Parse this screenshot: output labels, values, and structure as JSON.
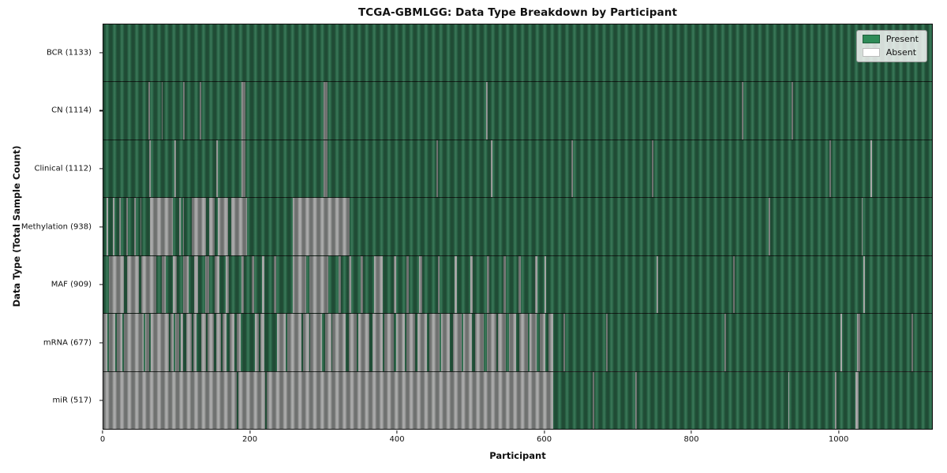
{
  "title": "TCGA-GBMLGG: Data Type Breakdown by Participant",
  "xlabel": "Participant",
  "ylabel": "Data Type (Total Sample Count)",
  "legend": {
    "present_label": "Present",
    "absent_label": "Absent"
  },
  "colors": {
    "present": "#2d6e4d",
    "absent": "#a9a9a9",
    "legend_present": "#2e8b57",
    "legend_absent": "#ffffff",
    "axis": "#111111"
  },
  "chart_data": {
    "type": "heatmap",
    "title": "TCGA-GBMLGG: Data Type Breakdown by Participant",
    "xlabel": "Participant",
    "ylabel": "Data Type (Total Sample Count)",
    "legend_entries": [
      "Present",
      "Absent"
    ],
    "legend_position": "upper right",
    "grid": false,
    "x_range": [
      0,
      1128
    ],
    "x_ticks": [
      0,
      200,
      400,
      600,
      800,
      1000
    ],
    "encoding_note": "Each row is a data type; x is participant index. 'base' is the dominant state; 'runs' are [start,end] participant spans of the opposite state (present<->absent).",
    "rows": [
      {
        "name": "bcr",
        "label": "BCR (1133)",
        "data_type": "BCR",
        "total_samples": 1133,
        "base": "present",
        "runs": []
      },
      {
        "name": "cn",
        "label": "CN (1114)",
        "data_type": "CN",
        "total_samples": 1114,
        "base": "present",
        "runs": [
          [
            61,
            63
          ],
          [
            79,
            81
          ],
          [
            109,
            111
          ],
          [
            131,
            133
          ],
          [
            188,
            193
          ],
          [
            300,
            305
          ],
          [
            521,
            523
          ],
          [
            869,
            871
          ],
          [
            937,
            939
          ]
        ]
      },
      {
        "name": "clinical",
        "label": "Clinical (1112)",
        "data_type": "Clinical",
        "total_samples": 1112,
        "base": "present",
        "runs": [
          [
            62,
            64
          ],
          [
            97,
            99
          ],
          [
            154,
            156
          ],
          [
            188,
            193
          ],
          [
            300,
            305
          ],
          [
            453,
            455
          ],
          [
            528,
            530
          ],
          [
            637,
            639
          ],
          [
            747,
            749
          ],
          [
            988,
            990
          ],
          [
            1044,
            1046
          ]
        ]
      },
      {
        "name": "methylation",
        "label": "Methylation (938)",
        "data_type": "Methylation",
        "total_samples": 938,
        "base": "present",
        "runs": [
          [
            4,
            6
          ],
          [
            13,
            15
          ],
          [
            22,
            24
          ],
          [
            31,
            33
          ],
          [
            42,
            44
          ],
          [
            50,
            52
          ],
          [
            63,
            95
          ],
          [
            103,
            105
          ],
          [
            108,
            110
          ],
          [
            120,
            140
          ],
          [
            144,
            152
          ],
          [
            156,
            170
          ],
          [
            174,
            196
          ],
          [
            258,
            335
          ],
          [
            906,
            908
          ],
          [
            1032,
            1034
          ]
        ]
      },
      {
        "name": "maf",
        "label": "MAF (909)",
        "data_type": "MAF",
        "total_samples": 909,
        "base": "present",
        "runs": [
          [
            8,
            28
          ],
          [
            32,
            48
          ],
          [
            52,
            72
          ],
          [
            80,
            85
          ],
          [
            95,
            100
          ],
          [
            108,
            116
          ],
          [
            124,
            129
          ],
          [
            139,
            144
          ],
          [
            152,
            158
          ],
          [
            166,
            171
          ],
          [
            188,
            191
          ],
          [
            202,
            205
          ],
          [
            216,
            219
          ],
          [
            232,
            235
          ],
          [
            258,
            276
          ],
          [
            280,
            306
          ],
          [
            320,
            323
          ],
          [
            334,
            337
          ],
          [
            350,
            353
          ],
          [
            368,
            380
          ],
          [
            395,
            399
          ],
          [
            412,
            416
          ],
          [
            430,
            434
          ],
          [
            455,
            458
          ],
          [
            478,
            481
          ],
          [
            500,
            503
          ],
          [
            522,
            525
          ],
          [
            545,
            548
          ],
          [
            565,
            568
          ],
          [
            588,
            591
          ],
          [
            600,
            603
          ],
          [
            753,
            755
          ],
          [
            857,
            859
          ],
          [
            1034,
            1037
          ]
        ]
      },
      {
        "name": "mrna",
        "label": "mRNA (677)",
        "data_type": "mRNA",
        "total_samples": 677,
        "base": "absent",
        "runs": [
          [
            5,
            7
          ],
          [
            16,
            18
          ],
          [
            26,
            28
          ],
          [
            55,
            57
          ],
          [
            62,
            64
          ],
          [
            89,
            91
          ],
          [
            96,
            98
          ],
          [
            103,
            105
          ],
          [
            109,
            113
          ],
          [
            120,
            122
          ],
          [
            127,
            133
          ],
          [
            140,
            142
          ],
          [
            150,
            154
          ],
          [
            160,
            162
          ],
          [
            168,
            172
          ],
          [
            178,
            182
          ],
          [
            187,
            206
          ],
          [
            212,
            214
          ],
          [
            219,
            236
          ],
          [
            248,
            250
          ],
          [
            270,
            272
          ],
          [
            280,
            282
          ],
          [
            298,
            302
          ],
          [
            310,
            312
          ],
          [
            330,
            334
          ],
          [
            345,
            347
          ],
          [
            362,
            366
          ],
          [
            380,
            382
          ],
          [
            395,
            399
          ],
          [
            410,
            412
          ],
          [
            424,
            428
          ],
          [
            440,
            444
          ],
          [
            458,
            460
          ],
          [
            472,
            476
          ],
          [
            488,
            490
          ],
          [
            502,
            506
          ],
          [
            518,
            522
          ],
          [
            535,
            537
          ],
          [
            548,
            552
          ],
          [
            562,
            566
          ],
          [
            578,
            580
          ],
          [
            590,
            594
          ],
          [
            602,
            606
          ],
          [
            612,
            626
          ],
          [
            628,
            684
          ],
          [
            686,
            846
          ],
          [
            848,
            1003
          ],
          [
            1005,
            1026
          ],
          [
            1030,
            1100
          ],
          [
            1102,
            1128
          ]
        ]
      },
      {
        "name": "mir",
        "label": "miR (517)",
        "data_type": "miR",
        "total_samples": 517,
        "base": "absent",
        "runs": [
          [
            182,
            184
          ],
          [
            220,
            222
          ],
          [
            612,
            666
          ],
          [
            668,
            724
          ],
          [
            726,
            932
          ],
          [
            934,
            996
          ],
          [
            998,
            1024
          ],
          [
            1028,
            1128
          ]
        ]
      }
    ]
  }
}
